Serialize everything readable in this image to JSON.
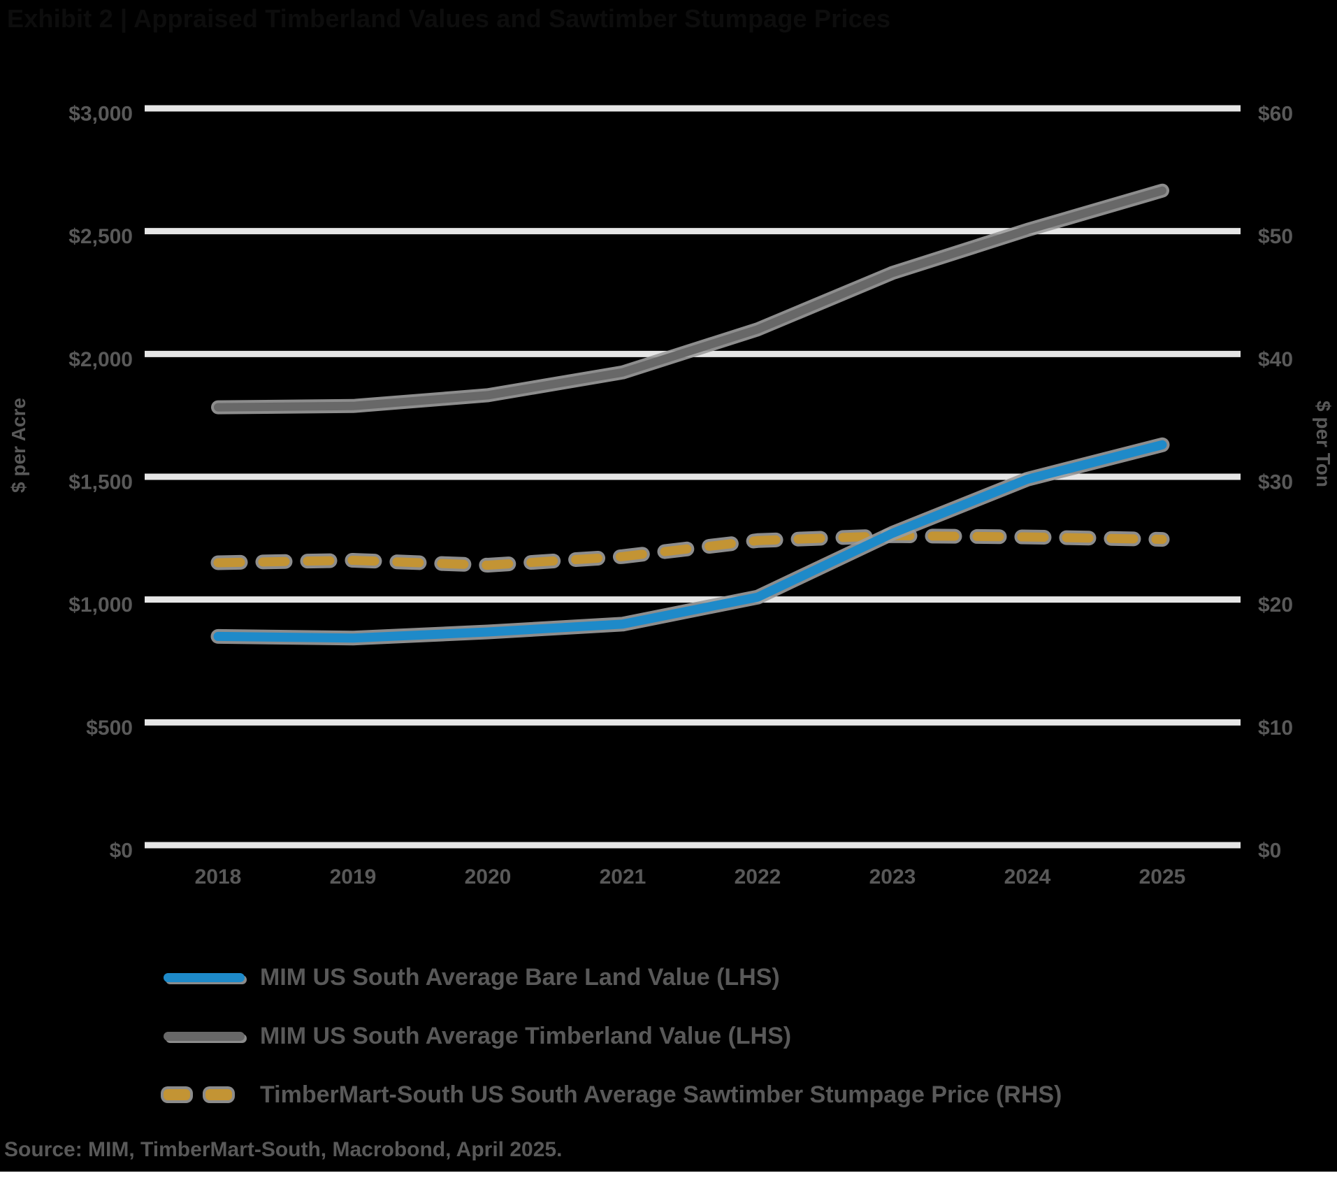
{
  "chart_data": {
    "type": "line",
    "title": "Exhibit 2 | Appraised Timberland Values and Sawtimber Stumpage Prices",
    "x": [
      "2018",
      "2019",
      "2020",
      "2021",
      "2022",
      "2023",
      "2024",
      "2025"
    ],
    "left_axis": {
      "title": "$ per Acre",
      "tick_labels": [
        "$3,000",
        "$2,500",
        "$2,000",
        "$1,500",
        "$1,000",
        "$500",
        "$0"
      ],
      "min": 0,
      "max": 3000
    },
    "right_axis": {
      "title": "$ per Ton",
      "tick_labels": [
        "$60",
        "$50",
        "$40",
        "$30",
        "$20",
        "$10",
        "$0"
      ],
      "min": 0,
      "max": 60
    },
    "grid": true,
    "legend_position": "bottom-left",
    "series": [
      {
        "name": "MIM US South Average Bare Land Value (LHS)",
        "axis": "left",
        "style": "solid",
        "color": "#1e8ac9",
        "values": [
          850,
          843,
          868,
          900,
          1010,
          1270,
          1490,
          1630
        ]
      },
      {
        "name": "MIM US South Average Timberland Value (LHS)",
        "axis": "left",
        "style": "solid",
        "color": "#686868",
        "values": [
          1783,
          1788,
          1832,
          1925,
          2100,
          2330,
          2505,
          2665
        ]
      },
      {
        "name": "TimberMart-South US South Average Sawtimber Stumpage Price (RHS)",
        "axis": "right",
        "style": "dashed",
        "color": "#c39434",
        "values": [
          23.0,
          23.2,
          22.8,
          23.5,
          24.8,
          25.2,
          25.1,
          24.9
        ]
      }
    ]
  },
  "source": "Source: MIM, TimberMart-South, Macrobond, April 2025.",
  "colors": {
    "background": "#000000",
    "gridline": "#e6e6e6",
    "tick_label": "#595959",
    "line_halo": "#9c9c9c",
    "footer_strip": "#ffffff",
    "title_text": "#0d0d0d"
  }
}
